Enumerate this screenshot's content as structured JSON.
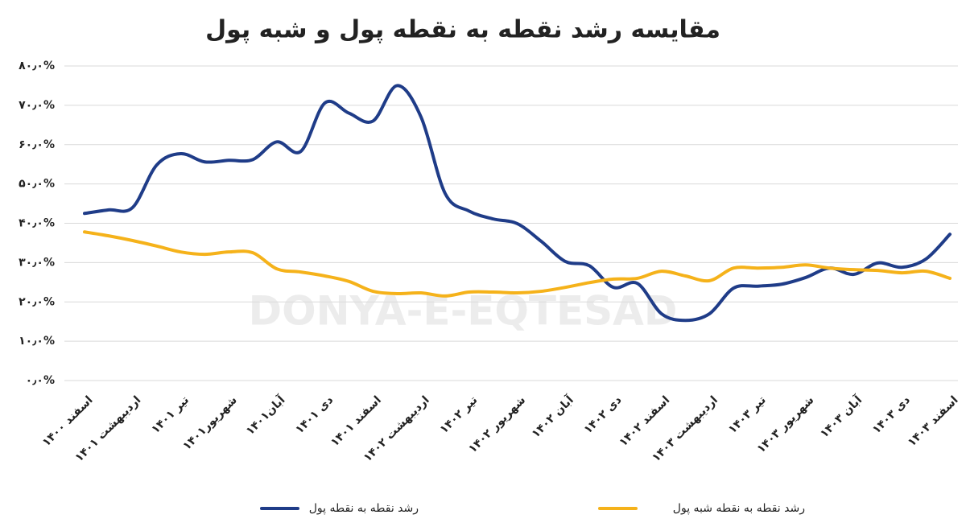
{
  "chart_data": {
    "type": "line",
    "title": "مقایسه رشد نقطه به نقطه پول و شبه پول",
    "watermark": "DONYA-E-EQTESAD",
    "categories": [
      "اسفند ۱۴۰۰",
      null,
      "اردیبهشت ۱۴۰۱",
      null,
      "تیر ۱۴۰۱",
      null,
      "شهریور۱۴۰۱",
      null,
      "آبان۱۴۰۱",
      null,
      "دی ۱۴۰۱",
      null,
      "اسفند ۱۴۰۱",
      null,
      "اردیبهشت ۱۴۰۲",
      null,
      "تیر ۱۴۰۲",
      null,
      "شهریور ۱۴۰۲",
      null,
      "آبان ۱۴۰۲",
      null,
      "دی ۱۴۰۲",
      null,
      "اسفند ۱۴۰۲",
      null,
      "اردیبهشت ۱۴۰۳",
      null,
      "تیر ۱۴۰۳",
      null,
      "شهریور ۱۴۰۳",
      null,
      "آبان ۱۴۰۳",
      null,
      "دی ۱۴۰۳",
      null,
      "اسفند ۱۴۰۳"
    ],
    "series": [
      {
        "name": "رشد نقطه به نقطه پول",
        "color": "#1f3c88",
        "values": [
          42.5,
          43.4,
          44,
          54.8,
          57.7,
          55.6,
          56,
          56.2,
          60.7,
          58.3,
          70.6,
          68,
          66,
          75,
          67,
          47.6,
          43.1,
          41.1,
          39.9,
          35.4,
          30.3,
          29.2,
          23.7,
          24.7,
          17,
          15.3,
          17,
          23.5,
          24,
          24.5,
          26.2,
          28.6,
          27,
          29.9,
          28.8,
          30.9,
          37.2
        ]
      },
      {
        "name": "رشد نقطه به نقطه شبه پول",
        "color": "#f5b21a",
        "values": [
          37.8,
          36.8,
          35.6,
          34.2,
          32.7,
          32.1,
          32.7,
          32.5,
          28.4,
          27.6,
          26.6,
          25.2,
          22.7,
          22.1,
          22.3,
          21.5,
          22.5,
          22.5,
          22.3,
          22.7,
          23.7,
          24.9,
          25.8,
          26,
          27.8,
          26.6,
          25.4,
          28.6,
          28.6,
          28.8,
          29.4,
          28.6,
          28.2,
          28,
          27.4,
          27.8,
          26
        ]
      }
    ],
    "ylim": [
      0,
      80
    ],
    "yticks": [
      {
        "value": 0,
        "label": "۰٫۰%"
      },
      {
        "value": 10,
        "label": "۱۰٫۰%"
      },
      {
        "value": 20,
        "label": "۲۰٫۰%"
      },
      {
        "value": 30,
        "label": "۳۰٫۰%"
      },
      {
        "value": 40,
        "label": "۴۰٫۰%"
      },
      {
        "value": 50,
        "label": "۵۰٫۰%"
      },
      {
        "value": 60,
        "label": "۶۰٫۰%"
      },
      {
        "value": 70,
        "label": "۷۰٫۰%"
      },
      {
        "value": 80,
        "label": "۸۰٫۰%"
      }
    ],
    "grid": true,
    "legend": "bottom"
  }
}
